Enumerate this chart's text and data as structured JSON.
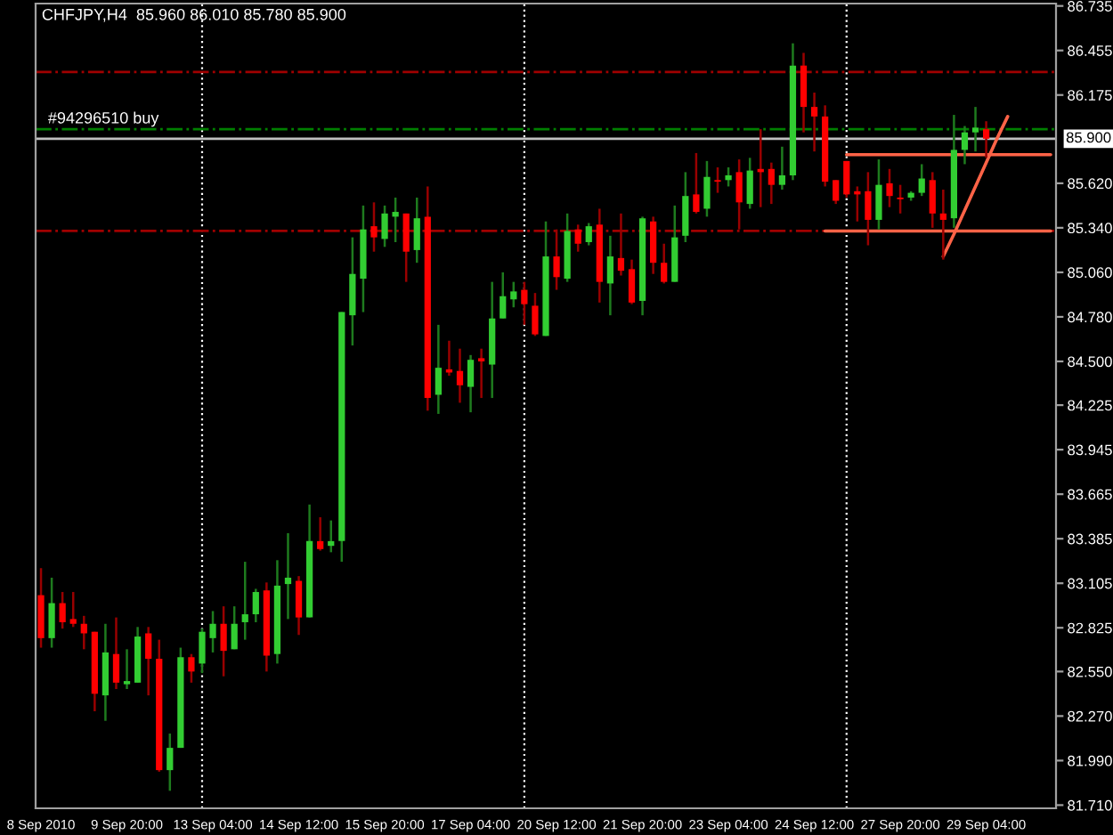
{
  "chart_data": {
    "type": "candlestick",
    "title": "CHFJPY,H4  85.960 86.010 85.780 85.900",
    "categories": [
      "8 Sep 2010",
      null,
      null,
      null,
      null,
      null,
      null,
      null,
      "9 Sep 20:00",
      null,
      null,
      null,
      null,
      null,
      null,
      null,
      "13 Sep 04:00",
      null,
      null,
      null,
      null,
      null,
      null,
      null,
      "14 Sep 12:00",
      null,
      null,
      null,
      null,
      null,
      null,
      null,
      "15 Sep 20:00",
      null,
      null,
      null,
      null,
      null,
      null,
      null,
      "17 Sep 04:00",
      null,
      null,
      null,
      null,
      null,
      null,
      null,
      "20 Sep 12:00",
      null,
      null,
      null,
      null,
      null,
      null,
      null,
      "21 Sep 20:00",
      null,
      null,
      null,
      null,
      null,
      null,
      null,
      "23 Sep 04:00",
      null,
      null,
      null,
      null,
      null,
      null,
      null,
      "24 Sep 12:00",
      null,
      null,
      null,
      null,
      null,
      null,
      null,
      "27 Sep 20:00",
      null,
      null,
      null,
      null,
      null,
      null,
      null,
      "29 Sep 04:00",
      null,
      null,
      null,
      null,
      null,
      null
    ],
    "ohlc": [
      [
        83.03,
        83.2,
        82.7,
        82.76
      ],
      [
        82.76,
        83.14,
        82.7,
        82.98
      ],
      [
        82.98,
        83.05,
        82.82,
        82.86
      ],
      [
        82.88,
        83.05,
        82.83,
        82.85
      ],
      [
        82.85,
        82.9,
        82.69,
        82.79
      ],
      [
        82.8,
        82.8,
        82.3,
        82.41
      ],
      [
        82.4,
        82.85,
        82.24,
        82.67
      ],
      [
        82.66,
        82.89,
        82.44,
        82.48
      ],
      [
        82.47,
        82.69,
        82.44,
        82.49
      ],
      [
        82.48,
        82.83,
        82.48,
        82.77
      ],
      [
        82.79,
        82.83,
        82.4,
        82.63
      ],
      [
        82.63,
        82.75,
        81.92,
        81.93
      ],
      [
        81.93,
        82.16,
        81.8,
        82.07
      ],
      [
        82.07,
        82.7,
        82.07,
        82.64
      ],
      [
        82.64,
        82.66,
        82.48,
        82.55
      ],
      [
        82.6,
        82.82,
        82.54,
        82.8
      ],
      [
        82.76,
        82.93,
        82.67,
        82.85
      ],
      [
        82.85,
        82.96,
        82.52,
        82.68
      ],
      [
        82.69,
        82.96,
        82.69,
        82.85
      ],
      [
        82.86,
        83.24,
        82.75,
        82.91
      ],
      [
        82.91,
        83.07,
        82.86,
        83.05
      ],
      [
        83.06,
        83.11,
        82.55,
        82.65
      ],
      [
        82.66,
        83.25,
        82.6,
        83.09
      ],
      [
        83.1,
        83.42,
        82.88,
        83.14
      ],
      [
        83.12,
        83.15,
        82.78,
        82.89
      ],
      [
        82.89,
        83.6,
        82.89,
        83.37
      ],
      [
        83.37,
        83.52,
        83.31,
        83.32
      ],
      [
        83.34,
        83.5,
        83.3,
        83.37
      ],
      [
        83.37,
        84.81,
        83.24,
        84.81
      ],
      [
        84.79,
        85.28,
        84.6,
        85.05
      ],
      [
        85.02,
        85.48,
        84.81,
        85.33
      ],
      [
        85.35,
        85.5,
        85.19,
        85.28
      ],
      [
        85.27,
        85.48,
        85.22,
        85.43
      ],
      [
        85.41,
        85.53,
        85.25,
        85.44
      ],
      [
        85.43,
        85.43,
        85.0,
        85.19
      ],
      [
        85.2,
        85.53,
        85.12,
        85.4
      ],
      [
        85.41,
        85.6,
        84.19,
        84.27
      ],
      [
        84.29,
        84.73,
        84.17,
        84.46
      ],
      [
        84.45,
        84.63,
        84.41,
        84.43
      ],
      [
        84.44,
        84.58,
        84.24,
        84.35
      ],
      [
        84.34,
        84.54,
        84.18,
        84.51
      ],
      [
        84.52,
        84.58,
        84.27,
        84.5
      ],
      [
        84.48,
        85.0,
        84.27,
        84.77
      ],
      [
        84.77,
        85.06,
        84.77,
        84.91
      ],
      [
        84.89,
        85.0,
        84.84,
        84.94
      ],
      [
        84.95,
        85.0,
        84.73,
        84.86
      ],
      [
        84.85,
        84.93,
        84.66,
        84.67
      ],
      [
        84.66,
        85.38,
        84.66,
        85.16
      ],
      [
        85.16,
        85.33,
        84.95,
        85.03
      ],
      [
        85.02,
        85.43,
        85.0,
        85.32
      ],
      [
        85.33,
        85.36,
        85.19,
        85.24
      ],
      [
        85.25,
        85.37,
        85.23,
        85.35
      ],
      [
        85.36,
        85.46,
        84.87,
        85.0
      ],
      [
        84.99,
        85.29,
        84.79,
        85.16
      ],
      [
        85.15,
        85.43,
        85.04,
        85.07
      ],
      [
        85.08,
        85.14,
        84.86,
        84.87
      ],
      [
        84.88,
        85.41,
        84.79,
        85.4
      ],
      [
        85.38,
        85.41,
        85.05,
        85.12
      ],
      [
        85.12,
        85.24,
        84.99,
        85.0
      ],
      [
        85.0,
        85.48,
        85.0,
        85.28
      ],
      [
        85.29,
        85.69,
        85.25,
        85.54
      ],
      [
        85.55,
        85.81,
        85.43,
        85.44
      ],
      [
        85.46,
        85.76,
        85.41,
        85.66
      ],
      [
        85.64,
        85.72,
        85.56,
        85.63
      ],
      [
        85.64,
        85.72,
        85.6,
        85.67
      ],
      [
        85.69,
        85.77,
        85.33,
        85.5
      ],
      [
        85.49,
        85.78,
        85.46,
        85.7
      ],
      [
        85.71,
        85.96,
        85.47,
        85.69
      ],
      [
        85.71,
        85.75,
        85.49,
        85.61
      ],
      [
        85.61,
        85.85,
        85.58,
        85.67
      ],
      [
        85.67,
        86.5,
        85.64,
        86.36
      ],
      [
        86.36,
        86.44,
        85.94,
        86.1
      ],
      [
        86.1,
        86.19,
        85.82,
        86.04
      ],
      [
        86.04,
        86.11,
        85.6,
        85.63
      ],
      [
        85.64,
        85.64,
        85.49,
        85.51
      ],
      [
        85.76,
        85.76,
        85.53,
        85.55
      ],
      [
        85.57,
        85.6,
        85.38,
        85.55
      ],
      [
        85.57,
        85.69,
        85.23,
        85.39
      ],
      [
        85.39,
        85.77,
        85.33,
        85.61
      ],
      [
        85.62,
        85.71,
        85.47,
        85.54
      ],
      [
        85.53,
        85.61,
        85.43,
        85.52
      ],
      [
        85.53,
        85.57,
        85.51,
        85.56
      ],
      [
        85.56,
        85.74,
        85.54,
        85.65
      ],
      [
        85.64,
        85.69,
        85.34,
        85.43
      ],
      [
        85.43,
        85.58,
        85.14,
        85.39
      ],
      [
        85.4,
        86.05,
        85.34,
        85.83
      ],
      [
        85.83,
        85.98,
        85.74,
        85.94
      ],
      [
        85.94,
        86.1,
        85.82,
        85.97
      ],
      [
        85.96,
        86.01,
        85.78,
        85.9
      ],
      null,
      null,
      null,
      null,
      null,
      null
    ],
    "colors": [
      "#ff0000",
      "#32cd32",
      "#ff0000",
      "#ff0000",
      "#ff0000",
      "#ff0000",
      "#32cd32",
      "#ff0000",
      "#32cd32",
      "#32cd32",
      "#ff0000",
      "#ff0000",
      "#32cd32",
      "#32cd32",
      "#ff0000",
      "#32cd32",
      "#32cd32",
      "#ff0000",
      "#32cd32",
      "#32cd32",
      "#32cd32",
      "#ff0000",
      "#32cd32",
      "#32cd32",
      "#ff0000",
      "#32cd32",
      "#ff0000",
      "#32cd32",
      "#32cd32",
      "#32cd32",
      "#32cd32",
      "#ff0000",
      "#32cd32",
      "#32cd32",
      "#ff0000",
      "#32cd32",
      "#ff0000",
      "#32cd32",
      "#ff0000",
      "#ff0000",
      "#32cd32",
      "#ff0000",
      "#32cd32",
      "#32cd32",
      "#32cd32",
      "#ff0000",
      "#ff0000",
      "#32cd32",
      "#ff0000",
      "#32cd32",
      "#ff0000",
      "#32cd32",
      "#ff0000",
      "#32cd32",
      "#ff0000",
      "#ff0000",
      "#32cd32",
      "#ff0000",
      "#ff0000",
      "#32cd32",
      "#32cd32",
      "#ff0000",
      "#32cd32",
      "#ff0000",
      "#32cd32",
      "#ff0000",
      "#32cd32",
      "#ff0000",
      "#ff0000",
      "#32cd32",
      "#32cd32",
      "#ff0000",
      "#ff0000",
      "#ff0000",
      "#ff0000",
      "#ff0000",
      "#ff0000",
      "#ff0000",
      "#32cd32",
      "#ff0000",
      "#ff0000",
      "#32cd32",
      "#32cd32",
      "#ff0000",
      "#ff0000",
      "#32cd32",
      "#32cd32",
      "#32cd32",
      "#ff0000",
      null,
      null,
      null,
      null,
      null,
      null
    ],
    "ylim": [
      81.69,
      86.75
    ],
    "yticks": [
      86.735,
      86.455,
      86.175,
      {
        "value": 85.62,
        "label": "85.620"
      },
      {
        "value": 85.34,
        "label": "85.340"
      },
      {
        "value": 85.06,
        "label": "85.060"
      },
      {
        "value": 84.78,
        "label": "84.780"
      },
      {
        "value": 84.5,
        "label": "84.500"
      },
      84.225,
      83.945,
      83.665,
      83.385,
      83.105,
      82.825,
      {
        "value": 82.55,
        "label": "82.550"
      },
      {
        "value": 82.27,
        "label": "82.270"
      },
      {
        "value": 81.99,
        "label": "81.990"
      },
      {
        "value": 81.71,
        "label": "81.710"
      }
    ],
    "ref_lines": [
      {
        "axis": "y",
        "value": 86.32,
        "color": "#a00000",
        "line_style": "dashdot"
      },
      {
        "axis": "y",
        "value": 85.96,
        "label": "#94296510 buy",
        "color": "#008000",
        "line_style": "dashdot"
      },
      {
        "axis": "y",
        "value": 85.9,
        "label": "85.900",
        "color": "#c0c0c0",
        "line_style": "solid"
      },
      {
        "axis": "y",
        "value": 85.32,
        "color": "#a00000",
        "line_style": "dashdot"
      }
    ],
    "series": [
      {
        "type": "line",
        "color": "#ff6347",
        "values": [
          null,
          null,
          null,
          null,
          null,
          null,
          null,
          null,
          null,
          null,
          null,
          null,
          null,
          null,
          null,
          null,
          null,
          null,
          null,
          null,
          null,
          null,
          null,
          null,
          null,
          null,
          null,
          null,
          null,
          null,
          null,
          null,
          null,
          null,
          null,
          null,
          null,
          null,
          null,
          null,
          null,
          null,
          null,
          null,
          null,
          null,
          null,
          null,
          null,
          null,
          null,
          null,
          null,
          null,
          null,
          null,
          null,
          null,
          null,
          null,
          null,
          null,
          null,
          null,
          null,
          null,
          null,
          null,
          null,
          null,
          null,
          null,
          null,
          null,
          null,
          85.8,
          85.8,
          85.8,
          85.8,
          85.8,
          85.8,
          85.8,
          85.8,
          85.8,
          85.8,
          85.8,
          85.8,
          85.8,
          85.8,
          85.8,
          85.8,
          85.8,
          85.8,
          85.8,
          85.8
        ]
      },
      {
        "type": "line",
        "color": "#ff6347",
        "values": [
          null,
          null,
          null,
          null,
          null,
          null,
          null,
          null,
          null,
          null,
          null,
          null,
          null,
          null,
          null,
          null,
          null,
          null,
          null,
          null,
          null,
          null,
          null,
          null,
          null,
          null,
          null,
          null,
          null,
          null,
          null,
          null,
          null,
          null,
          null,
          null,
          null,
          null,
          null,
          null,
          null,
          null,
          null,
          null,
          null,
          null,
          null,
          null,
          null,
          null,
          null,
          null,
          null,
          null,
          null,
          null,
          null,
          null,
          null,
          null,
          null,
          null,
          null,
          null,
          null,
          null,
          null,
          null,
          null,
          null,
          null,
          null,
          null,
          85.32,
          85.32,
          85.32,
          85.32,
          85.32,
          85.32,
          85.32,
          85.32,
          85.32,
          85.32,
          85.32,
          85.32,
          85.32,
          85.32,
          85.32,
          85.32,
          85.32,
          85.32,
          85.32,
          85.32,
          85.32,
          85.32
        ]
      },
      {
        "type": "line",
        "color": "#ff6347",
        "values": [
          null,
          null,
          null,
          null,
          null,
          null,
          null,
          null,
          null,
          null,
          null,
          null,
          null,
          null,
          null,
          null,
          null,
          null,
          null,
          null,
          null,
          null,
          null,
          null,
          null,
          null,
          null,
          null,
          null,
          null,
          null,
          null,
          null,
          null,
          null,
          null,
          null,
          null,
          null,
          null,
          null,
          null,
          null,
          null,
          null,
          null,
          null,
          null,
          null,
          null,
          null,
          null,
          null,
          null,
          null,
          null,
          null,
          null,
          null,
          null,
          null,
          null,
          null,
          null,
          null,
          null,
          null,
          null,
          null,
          null,
          null,
          null,
          null,
          null,
          null,
          null,
          null,
          null,
          null,
          null,
          null,
          null,
          null,
          null,
          85.16,
          85.3,
          85.45,
          85.6,
          85.75,
          85.9,
          86.04,
          null,
          null,
          null,
          null
        ]
      }
    ]
  }
}
